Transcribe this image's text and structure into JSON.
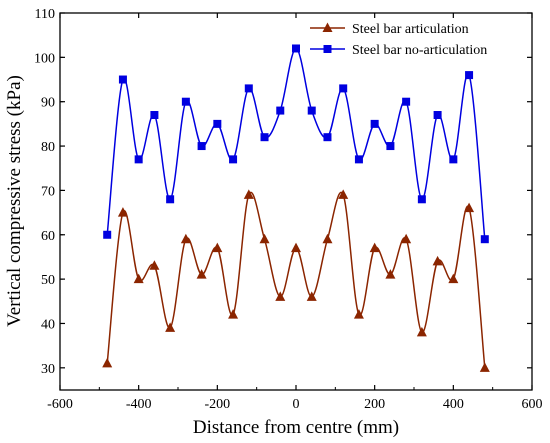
{
  "chart_data": {
    "type": "line",
    "title": "",
    "xlabel": "Distance from centre (mm)",
    "ylabel": "Vertical compressive stress (kPa)",
    "xlim": [
      -600,
      600
    ],
    "ylim": [
      25,
      110
    ],
    "xticks": [
      -600,
      -400,
      -200,
      0,
      200,
      400,
      600
    ],
    "yticks": [
      30,
      40,
      50,
      60,
      70,
      80,
      90,
      100,
      110
    ],
    "grid": false,
    "legend_position": "top-right",
    "x": [
      -480,
      -440,
      -400,
      -360,
      -320,
      -280,
      -240,
      -200,
      -160,
      -120,
      -80,
      -40,
      0,
      40,
      80,
      120,
      160,
      200,
      240,
      280,
      320,
      360,
      400,
      440,
      480
    ],
    "series": [
      {
        "name": "Steel bar articulation",
        "color": "#8B2500",
        "marker": "triangle",
        "values": [
          31,
          65,
          50,
          53,
          39,
          59,
          51,
          57,
          42,
          69,
          59,
          46,
          57,
          46,
          59,
          69,
          42,
          57,
          51,
          59,
          38,
          54,
          50,
          66,
          30
        ]
      },
      {
        "name": "Steel bar no-articulation",
        "color": "#0000E0",
        "marker": "square",
        "values": [
          60,
          95,
          77,
          87,
          68,
          90,
          80,
          85,
          77,
          93,
          82,
          88,
          102,
          88,
          82,
          93,
          77,
          85,
          80,
          90,
          68,
          87,
          77,
          96,
          59
        ]
      }
    ]
  }
}
